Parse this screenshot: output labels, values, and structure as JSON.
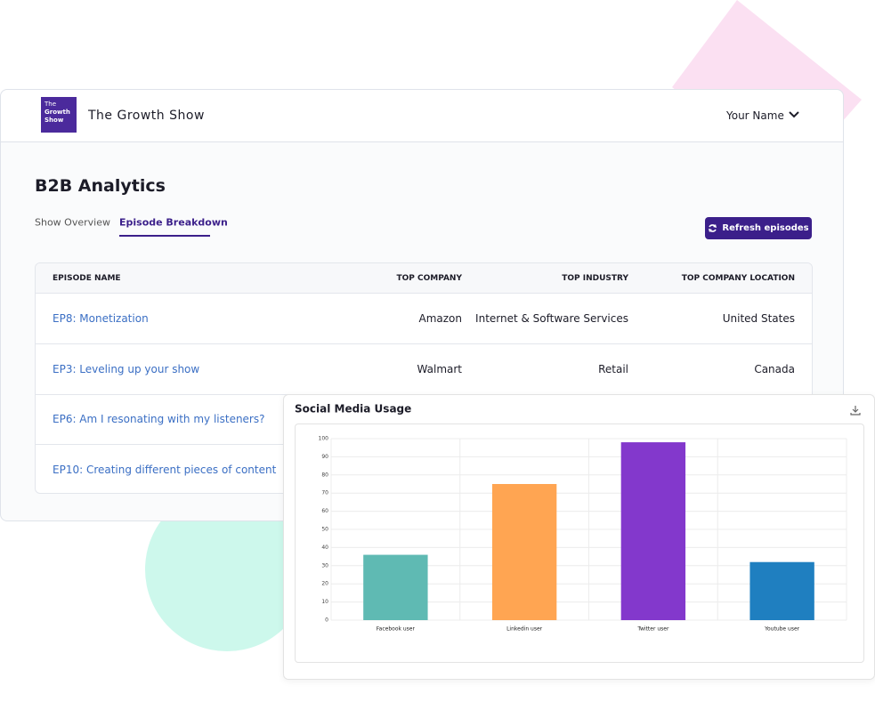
{
  "header": {
    "logo_lines": [
      "The",
      "Growth",
      "Show"
    ],
    "show_name": "The Growth Show",
    "user": "Your Name"
  },
  "page": {
    "title": "B2B Analytics",
    "tabs": [
      "Show Overview",
      "Episode Breakdown"
    ],
    "active_tab": 1,
    "button": "Refresh episodes"
  },
  "table": {
    "columns": [
      "EPISODE NAME",
      "TOP COMPANY",
      "TOP INDUSTRY",
      "TOP COMPANY LOCATION"
    ],
    "rows": [
      [
        "EP8: Monetization",
        "Amazon",
        "Internet & Software Services",
        "United States"
      ],
      [
        "EP3: Leveling up your show",
        "Walmart",
        "Retail",
        "Canada"
      ],
      [
        "EP6: Am I resonating with my listeners?"
      ],
      [
        "EP10: Creating different pieces of content"
      ]
    ]
  },
  "chart_data": {
    "type": "bar",
    "title": "Social Media Usage",
    "categories": [
      "Facebook user",
      "Linkedin user",
      "Twitter user",
      "Youtube user"
    ],
    "values": [
      36,
      75,
      98,
      32
    ],
    "colors": [
      "#5fbab3",
      "#ffa552",
      "#8338cc",
      "#1f7fc0"
    ],
    "ylim": [
      0,
      100
    ],
    "yticks": [
      0,
      10,
      20,
      30,
      40,
      50,
      60,
      70,
      80,
      90,
      100
    ],
    "grid": true
  }
}
